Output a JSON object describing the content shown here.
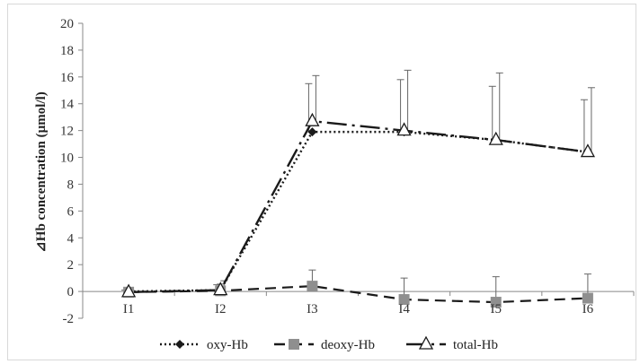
{
  "chart_data": {
    "type": "line",
    "categories": [
      "I1",
      "I2",
      "I3",
      "I4",
      "I5",
      "I6"
    ],
    "ylabel": "⊿Hb concentration (µmol/l)",
    "ylim": [
      -2,
      20
    ],
    "yticks": [
      -2,
      0,
      2,
      4,
      6,
      8,
      10,
      12,
      14,
      16,
      18,
      20
    ],
    "grid": false,
    "legend_position": "bottom",
    "series": [
      {
        "name": "oxy-Hb",
        "values": [
          0.0,
          0.1,
          11.9,
          11.9,
          11.3,
          10.4
        ],
        "error": [
          0.1,
          0.4,
          3.6,
          3.9,
          4.0,
          3.9
        ],
        "marker": "diamond",
        "line_style": "dotted",
        "color": "#1a1a1a"
      },
      {
        "name": "deoxy-Hb",
        "values": [
          -0.05,
          0.05,
          0.4,
          -0.6,
          -0.8,
          -0.5
        ],
        "error": [
          0.1,
          0.5,
          1.2,
          1.6,
          1.9,
          1.8
        ],
        "marker": "square",
        "line_style": "dashed",
        "color": "#1a1a1a",
        "marker_color": "#8f8f8f"
      },
      {
        "name": "total-Hb",
        "values": [
          -0.05,
          0.1,
          12.7,
          12.0,
          11.3,
          10.4
        ],
        "error": [
          0.1,
          0.7,
          3.4,
          4.5,
          5.0,
          4.8
        ],
        "marker": "triangle-open",
        "line_style": "long-dash-dot",
        "color": "#1a1a1a"
      }
    ]
  }
}
